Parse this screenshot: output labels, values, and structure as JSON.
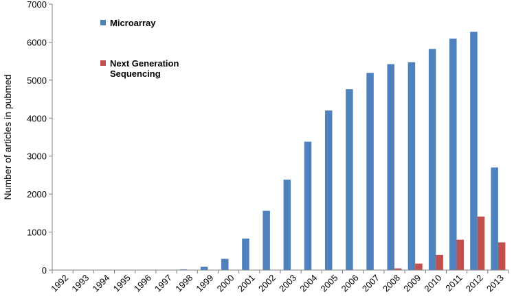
{
  "chart_data": {
    "type": "bar",
    "title": "",
    "xlabel": "",
    "ylabel": "Number of articles in pubmed",
    "ylim": [
      0,
      7000
    ],
    "yticks": [
      "0",
      "1000",
      "2000",
      "3000",
      "4000",
      "5000",
      "6000",
      "7000"
    ],
    "grid": false,
    "legend_position": "top-left",
    "categories": [
      "1992",
      "1993",
      "1994",
      "1995",
      "1996",
      "1997",
      "1998",
      "1999",
      "2000",
      "2001",
      "2002",
      "2003",
      "2004",
      "2005",
      "2006",
      "2007",
      "2008",
      "2009",
      "2010",
      "2011",
      "2012",
      "2013"
    ],
    "series": [
      {
        "name": "Microarray",
        "color": "#4F81BD",
        "values": [
          0,
          5,
          0,
          0,
          0,
          0,
          20,
          90,
          295,
          830,
          1560,
          2380,
          3380,
          4200,
          4760,
          5190,
          5420,
          5470,
          5820,
          6090,
          6270,
          2700
        ]
      },
      {
        "name_lines": [
          "Next Generation",
          "Sequencing"
        ],
        "color": "#C0504D",
        "values": [
          0,
          0,
          0,
          0,
          0,
          0,
          0,
          0,
          0,
          0,
          0,
          0,
          0,
          0,
          0,
          5,
          45,
          170,
          400,
          800,
          1410,
          730
        ]
      }
    ]
  }
}
